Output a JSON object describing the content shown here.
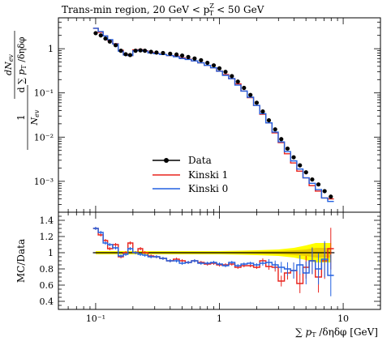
{
  "title_text": "Trans-min region, 20 GeV < p",
  "title_sup": "Z",
  "title_sub": "T",
  "title_tail": " < 50 GeV",
  "colors": {
    "data": "#000000",
    "kinski1": "#e8231d",
    "kinski0": "#2361e0",
    "band_outer": "#ffff00",
    "band_inner": "#e6c200"
  },
  "chart_data": [
    {
      "type": "line",
      "title": "Trans-min region, 20 GeV < p_T^Z < 50 GeV",
      "xlabel": "∑ p_T / δη δφ [GeV]",
      "ylabel": "1/N_ev dN_ev / d∑ p_T / δη δφ",
      "xscale": "log",
      "yscale": "log",
      "xlim": [
        0.05,
        20
      ],
      "ylim": [
        0.0002,
        5
      ],
      "x_ticks": [
        "10⁻¹",
        "1",
        "10"
      ],
      "y_ticks": [
        "10⁻³",
        "10⁻²",
        "10⁻¹",
        "1"
      ],
      "legend_position": "bottom-left",
      "series": [
        {
          "name": "Data",
          "x": [
            0.1,
            0.11,
            0.12,
            0.13,
            0.145,
            0.16,
            0.175,
            0.19,
            0.21,
            0.23,
            0.25,
            0.28,
            0.31,
            0.35,
            0.4,
            0.45,
            0.5,
            0.56,
            0.63,
            0.71,
            0.8,
            0.9,
            1.0,
            1.12,
            1.26,
            1.41,
            1.58,
            1.78,
            2.0,
            2.24,
            2.51,
            2.82,
            3.16,
            3.55,
            3.98,
            4.47,
            5.01,
            5.62,
            6.31,
            7.08,
            7.94
          ],
          "y": [
            2.25,
            2.0,
            1.7,
            1.45,
            1.2,
            0.9,
            0.75,
            0.72,
            0.9,
            0.92,
            0.9,
            0.85,
            0.82,
            0.8,
            0.77,
            0.74,
            0.7,
            0.65,
            0.6,
            0.55,
            0.48,
            0.42,
            0.36,
            0.3,
            0.24,
            0.18,
            0.13,
            0.09,
            0.06,
            0.038,
            0.024,
            0.015,
            0.009,
            0.0055,
            0.0035,
            0.0023,
            0.0016,
            0.0011,
            0.00085,
            0.0006,
            0.00045
          ]
        },
        {
          "name": "Kinski 1",
          "x": [
            0.1,
            0.11,
            0.12,
            0.13,
            0.145,
            0.16,
            0.175,
            0.19,
            0.21,
            0.23,
            0.25,
            0.28,
            0.31,
            0.35,
            0.4,
            0.45,
            0.5,
            0.56,
            0.63,
            0.71,
            0.8,
            0.9,
            1.0,
            1.12,
            1.26,
            1.41,
            1.58,
            1.78,
            2.0,
            2.24,
            2.51,
            2.82,
            3.16,
            3.55,
            3.98,
            4.47,
            5.01,
            5.62,
            6.31,
            7.08,
            7.94
          ],
          "y": [
            2.9,
            2.35,
            1.95,
            1.55,
            1.3,
            0.92,
            0.74,
            0.7,
            0.94,
            0.95,
            0.9,
            0.82,
            0.78,
            0.74,
            0.7,
            0.68,
            0.62,
            0.58,
            0.53,
            0.48,
            0.42,
            0.37,
            0.31,
            0.26,
            0.21,
            0.16,
            0.11,
            0.078,
            0.052,
            0.033,
            0.021,
            0.0125,
            0.0075,
            0.0042,
            0.0026,
            0.0017,
            0.0012,
            0.0008,
            0.0006,
            0.00042,
            0.0004
          ]
        },
        {
          "name": "Kinski 0",
          "x": [
            0.1,
            0.11,
            0.12,
            0.13,
            0.145,
            0.16,
            0.175,
            0.19,
            0.21,
            0.23,
            0.25,
            0.28,
            0.31,
            0.35,
            0.4,
            0.45,
            0.5,
            0.56,
            0.63,
            0.71,
            0.8,
            0.9,
            1.0,
            1.12,
            1.26,
            1.41,
            1.58,
            1.78,
            2.0,
            2.24,
            2.51,
            2.82,
            3.16,
            3.55,
            3.98,
            4.47,
            5.01,
            5.62,
            6.31,
            7.08,
            7.94
          ],
          "y": [
            2.9,
            2.45,
            1.95,
            1.6,
            1.28,
            0.88,
            0.72,
            0.7,
            0.9,
            0.93,
            0.88,
            0.8,
            0.77,
            0.74,
            0.7,
            0.66,
            0.6,
            0.57,
            0.53,
            0.48,
            0.42,
            0.37,
            0.31,
            0.25,
            0.21,
            0.15,
            0.11,
            0.08,
            0.052,
            0.034,
            0.021,
            0.013,
            0.0078,
            0.0047,
            0.0029,
            0.0019,
            0.0012,
            0.0009,
            0.00065,
            0.00042,
            0.00035
          ]
        }
      ]
    },
    {
      "type": "line",
      "ylabel": "MC/Data",
      "xscale": "log",
      "xlim": [
        0.05,
        20
      ],
      "ylim": [
        0.3,
        1.5
      ],
      "y_ticks": [
        "0.4",
        "0.6",
        "0.8",
        "1",
        "1.2",
        "1.4"
      ],
      "band_x": [
        0.1,
        0.3,
        0.5,
        1.0,
        1.5,
        2.0,
        3.0,
        4.0,
        5.0,
        6.0,
        7.0,
        8.0
      ],
      "band_outer": [
        0.02,
        0.02,
        0.02,
        0.02,
        0.025,
        0.03,
        0.04,
        0.06,
        0.09,
        0.12,
        0.12,
        0.12
      ],
      "band_inner": [
        0.01,
        0.01,
        0.01,
        0.01,
        0.012,
        0.015,
        0.02,
        0.03,
        0.04,
        0.06,
        0.06,
        0.06
      ],
      "series": [
        {
          "name": "Kinski 1",
          "x": [
            0.1,
            0.11,
            0.12,
            0.13,
            0.145,
            0.16,
            0.175,
            0.19,
            0.21,
            0.23,
            0.25,
            0.28,
            0.31,
            0.35,
            0.4,
            0.45,
            0.5,
            0.56,
            0.63,
            0.71,
            0.8,
            0.9,
            1.0,
            1.12,
            1.26,
            1.41,
            1.58,
            1.78,
            2.0,
            2.24,
            2.51,
            2.82,
            3.16,
            3.55,
            3.98,
            4.47,
            5.01,
            5.62,
            6.31,
            7.08,
            7.94
          ],
          "y": [
            1.3,
            1.22,
            1.15,
            1.05,
            1.1,
            0.95,
            1.0,
            1.12,
            1.0,
            1.05,
            1.0,
            0.96,
            0.95,
            0.93,
            0.9,
            0.92,
            0.9,
            0.88,
            0.9,
            0.88,
            0.86,
            0.87,
            0.85,
            0.85,
            0.86,
            0.82,
            0.84,
            0.84,
            0.82,
            0.9,
            0.83,
            0.82,
            0.65,
            0.75,
            0.78,
            0.62,
            0.82,
            0.9,
            0.7,
            0.9,
            1.05
          ]
        },
        {
          "name": "Kinski 0",
          "x": [
            0.1,
            0.11,
            0.12,
            0.13,
            0.145,
            0.16,
            0.175,
            0.19,
            0.21,
            0.23,
            0.25,
            0.28,
            0.31,
            0.35,
            0.4,
            0.45,
            0.5,
            0.56,
            0.63,
            0.71,
            0.8,
            0.9,
            1.0,
            1.12,
            1.26,
            1.41,
            1.58,
            1.78,
            2.0,
            2.24,
            2.51,
            2.82,
            3.16,
            3.55,
            3.98,
            4.47,
            5.01,
            5.62,
            6.31,
            7.08,
            7.94
          ],
          "y": [
            1.3,
            1.25,
            1.12,
            1.1,
            1.06,
            0.96,
            0.98,
            1.05,
            1.0,
            0.98,
            0.97,
            0.95,
            0.95,
            0.93,
            0.9,
            0.9,
            0.87,
            0.88,
            0.9,
            0.87,
            0.87,
            0.88,
            0.86,
            0.84,
            0.88,
            0.84,
            0.86,
            0.87,
            0.85,
            0.87,
            0.88,
            0.85,
            0.82,
            0.8,
            0.78,
            0.85,
            0.75,
            0.9,
            0.8,
            0.92,
            0.72
          ]
        }
      ]
    }
  ]
}
